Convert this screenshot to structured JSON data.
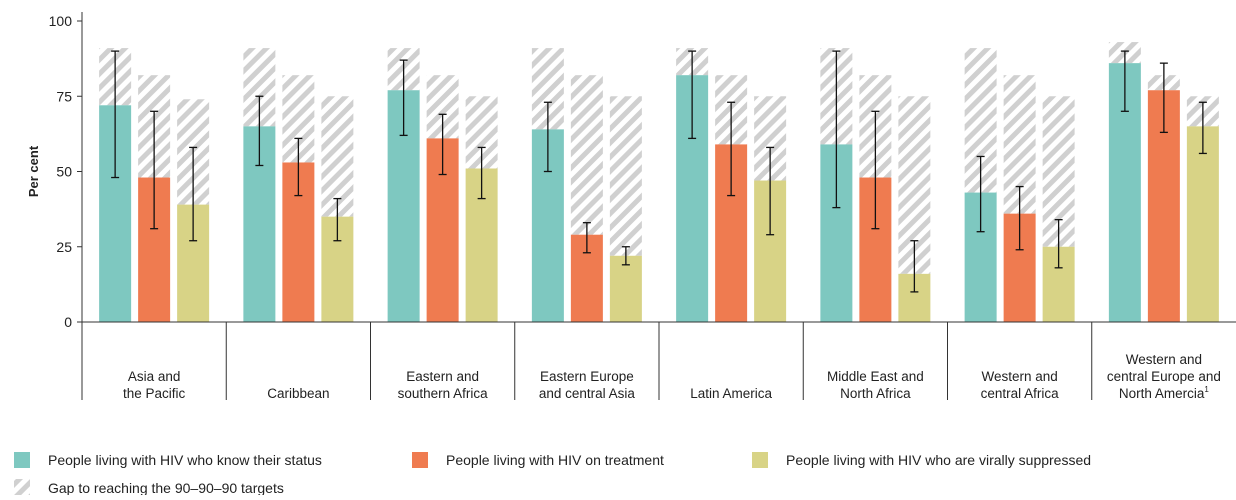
{
  "chart_data": {
    "type": "bar",
    "title": "",
    "ylabel": "Per cent",
    "ylim": [
      0,
      100
    ],
    "yticks": [
      0,
      25,
      50,
      75,
      100
    ],
    "categories": [
      [
        "Asia and",
        "the Pacific"
      ],
      [
        "Caribbean"
      ],
      [
        "Eastern and",
        "southern Africa"
      ],
      [
        "Eastern Europe",
        "and central Asia"
      ],
      [
        "Latin America"
      ],
      [
        "Middle East and",
        "North Africa"
      ],
      [
        "Western and",
        "central Africa"
      ],
      [
        "Western and",
        "central Europe and",
        "North Amercia"
      ]
    ],
    "footnote_marker": "1",
    "targets": [
      90,
      81,
      73
    ],
    "series": [
      {
        "name": "People living with HIV who know their status",
        "color": "#7ec8c0",
        "values": [
          72,
          65,
          77,
          64,
          82,
          59,
          43,
          86
        ],
        "error_low": [
          48,
          52,
          62,
          50,
          61,
          38,
          30,
          70
        ],
        "error_high": [
          90,
          75,
          87,
          73,
          90,
          90,
          55,
          90
        ],
        "target_gap_top": [
          91,
          91,
          91,
          91,
          91,
          91,
          91,
          93
        ]
      },
      {
        "name": "People living with HIV on treatment",
        "color": "#ef7b50",
        "values": [
          48,
          53,
          61,
          29,
          59,
          48,
          36,
          77
        ],
        "error_low": [
          31,
          42,
          49,
          23,
          42,
          31,
          24,
          63
        ],
        "error_high": [
          70,
          61,
          69,
          33,
          73,
          70,
          45,
          86
        ],
        "target_gap_top": [
          82,
          82,
          82,
          82,
          82,
          82,
          82,
          82
        ]
      },
      {
        "name": "People living with HIV who are virally suppressed",
        "color": "#d8d386",
        "values": [
          39,
          35,
          51,
          22,
          47,
          16,
          25,
          65
        ],
        "error_low": [
          27,
          27,
          41,
          19,
          29,
          10,
          18,
          56
        ],
        "error_high": [
          58,
          41,
          58,
          25,
          58,
          27,
          34,
          73
        ],
        "target_gap_top": [
          74,
          75,
          75,
          75,
          75,
          75,
          75,
          75
        ]
      }
    ],
    "gap_legend": "Gap to reaching the 90–90–90 targets",
    "gap_color": "#cfcfcf",
    "legend_position": "bottom"
  }
}
